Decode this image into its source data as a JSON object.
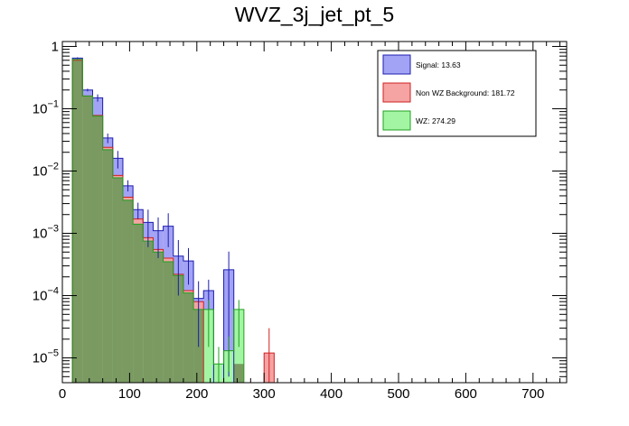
{
  "chart_data": {
    "type": "histogram",
    "title": "WVZ_3j_jet_pt_5",
    "xlabel": "",
    "ylabel": "",
    "x_range": [
      0,
      750
    ],
    "y_scale": "log",
    "y_range": [
      4e-06,
      1.2
    ],
    "bin_width": 15,
    "x_ticks": [
      {
        "value": 0,
        "label": "0"
      },
      {
        "value": 100,
        "label": "100"
      },
      {
        "value": 200,
        "label": "200"
      },
      {
        "value": 300,
        "label": "300"
      },
      {
        "value": 400,
        "label": "400"
      },
      {
        "value": 500,
        "label": "500"
      },
      {
        "value": 600,
        "label": "600"
      },
      {
        "value": 700,
        "label": "700"
      }
    ],
    "y_ticks": [
      {
        "value": 1,
        "base": "1",
        "exp": ""
      },
      {
        "value": 0.1,
        "base": "10",
        "exp": "−1"
      },
      {
        "value": 0.01,
        "base": "10",
        "exp": "−2"
      },
      {
        "value": 0.001,
        "base": "10",
        "exp": "−3"
      },
      {
        "value": 0.0001,
        "base": "10",
        "exp": "−4"
      },
      {
        "value": 1e-05,
        "base": "10",
        "exp": "−5"
      }
    ],
    "series": [
      {
        "name": "Signal",
        "legend_label": "Signal: 13.63",
        "fill": "#a3a3f5",
        "edge": "#1c1cb0",
        "bins": [
          [
            15,
            30,
            0.65
          ],
          [
            30,
            45,
            0.2
          ],
          [
            45,
            60,
            0.15
          ],
          [
            60,
            75,
            0.034
          ],
          [
            75,
            90,
            0.016
          ],
          [
            90,
            105,
            0.0058
          ],
          [
            105,
            120,
            0.0024
          ],
          [
            120,
            135,
            0.0015
          ],
          [
            135,
            150,
            0.0011
          ],
          [
            150,
            165,
            0.0013
          ],
          [
            165,
            180,
            0.00043
          ],
          [
            180,
            195,
            0.00036
          ],
          [
            195,
            210,
            9e-05
          ],
          [
            210,
            225,
            0.00012
          ],
          [
            240,
            255,
            0.00026
          ]
        ],
        "errors": [
          [
            22.5,
            0.63,
            0.67
          ],
          [
            37.5,
            0.19,
            0.21
          ],
          [
            52.5,
            0.13,
            0.17
          ],
          [
            67.5,
            0.028,
            0.04
          ],
          [
            82.5,
            0.011,
            0.021
          ],
          [
            97.5,
            0.0047,
            0.0071
          ],
          [
            112.5,
            0.0017,
            0.0031
          ],
          [
            127.5,
            0.0006,
            0.0024
          ],
          [
            142.5,
            0.0004,
            0.0018
          ],
          [
            157.5,
            0.0006,
            0.0021
          ],
          [
            172.5,
            0.0001,
            0.00078
          ],
          [
            187.5,
            0.00015,
            0.00058
          ],
          [
            202.5,
            1.5e-05,
            0.00017
          ],
          [
            217.5,
            6e-05,
            0.00018
          ],
          [
            247.5,
            5e-06,
            0.00051
          ]
        ]
      },
      {
        "name": "Non WZ Background",
        "legend_label": "Non WZ Background: 181.72",
        "fill": "#f5a3a3",
        "edge": "#d02020",
        "bins": [
          [
            15,
            30,
            0.6
          ],
          [
            30,
            45,
            0.16
          ],
          [
            45,
            60,
            0.078
          ],
          [
            60,
            75,
            0.024
          ],
          [
            75,
            90,
            0.0085
          ],
          [
            90,
            105,
            0.0038
          ],
          [
            105,
            120,
            0.0017
          ],
          [
            120,
            135,
            0.00085
          ],
          [
            135,
            150,
            0.00055
          ],
          [
            150,
            165,
            0.0004
          ],
          [
            165,
            180,
            0.00022
          ],
          [
            180,
            195,
            0.00012
          ],
          [
            195,
            210,
            8e-05
          ],
          [
            300,
            315,
            1.2e-05
          ]
        ],
        "errors": [
          [
            307.5,
            4e-06,
            3e-05
          ]
        ]
      },
      {
        "name": "WZ",
        "legend_label": "WZ: 274.29",
        "fill": "#a3f5a3",
        "edge": "#20a020",
        "bins": [
          [
            15,
            30,
            0.62
          ],
          [
            30,
            45,
            0.16
          ],
          [
            45,
            60,
            0.076
          ],
          [
            60,
            75,
            0.022
          ],
          [
            75,
            90,
            0.0078
          ],
          [
            90,
            105,
            0.0034
          ],
          [
            105,
            120,
            0.0014
          ],
          [
            120,
            135,
            0.00075
          ],
          [
            135,
            150,
            0.0005
          ],
          [
            150,
            165,
            0.00035
          ],
          [
            165,
            180,
            0.00021
          ],
          [
            180,
            195,
            0.00011
          ],
          [
            195,
            210,
            6e-05
          ],
          [
            210,
            225,
            6e-05
          ],
          [
            225,
            240,
            8e-06
          ],
          [
            240,
            255,
            1.3e-05
          ],
          [
            255,
            270,
            6e-05
          ]
        ],
        "errors": [
          [
            217.5,
            1.5e-05,
            8.5e-05
          ],
          [
            232.5,
            4e-06,
            1.5e-05
          ],
          [
            247.5,
            6e-06,
            2.2e-05
          ],
          [
            262.5,
            1.5e-05,
            8.5e-05
          ]
        ]
      }
    ],
    "overlap": {
      "name": "overlap",
      "fill": "#7a9a62",
      "bins": [
        [
          15,
          30,
          0.6
        ],
        [
          30,
          45,
          0.16
        ],
        [
          45,
          60,
          0.076
        ],
        [
          60,
          75,
          0.022
        ],
        [
          75,
          90,
          0.0078
        ],
        [
          90,
          105,
          0.0034
        ],
        [
          105,
          120,
          0.0014
        ],
        [
          120,
          135,
          0.00075
        ],
        [
          135,
          150,
          0.0005
        ],
        [
          150,
          165,
          0.00035
        ],
        [
          165,
          180,
          0.00021
        ],
        [
          180,
          195,
          0.00011
        ],
        [
          195,
          210,
          6e-05
        ],
        [
          255,
          270,
          8e-06
        ]
      ]
    },
    "legend_position": "top-right"
  }
}
